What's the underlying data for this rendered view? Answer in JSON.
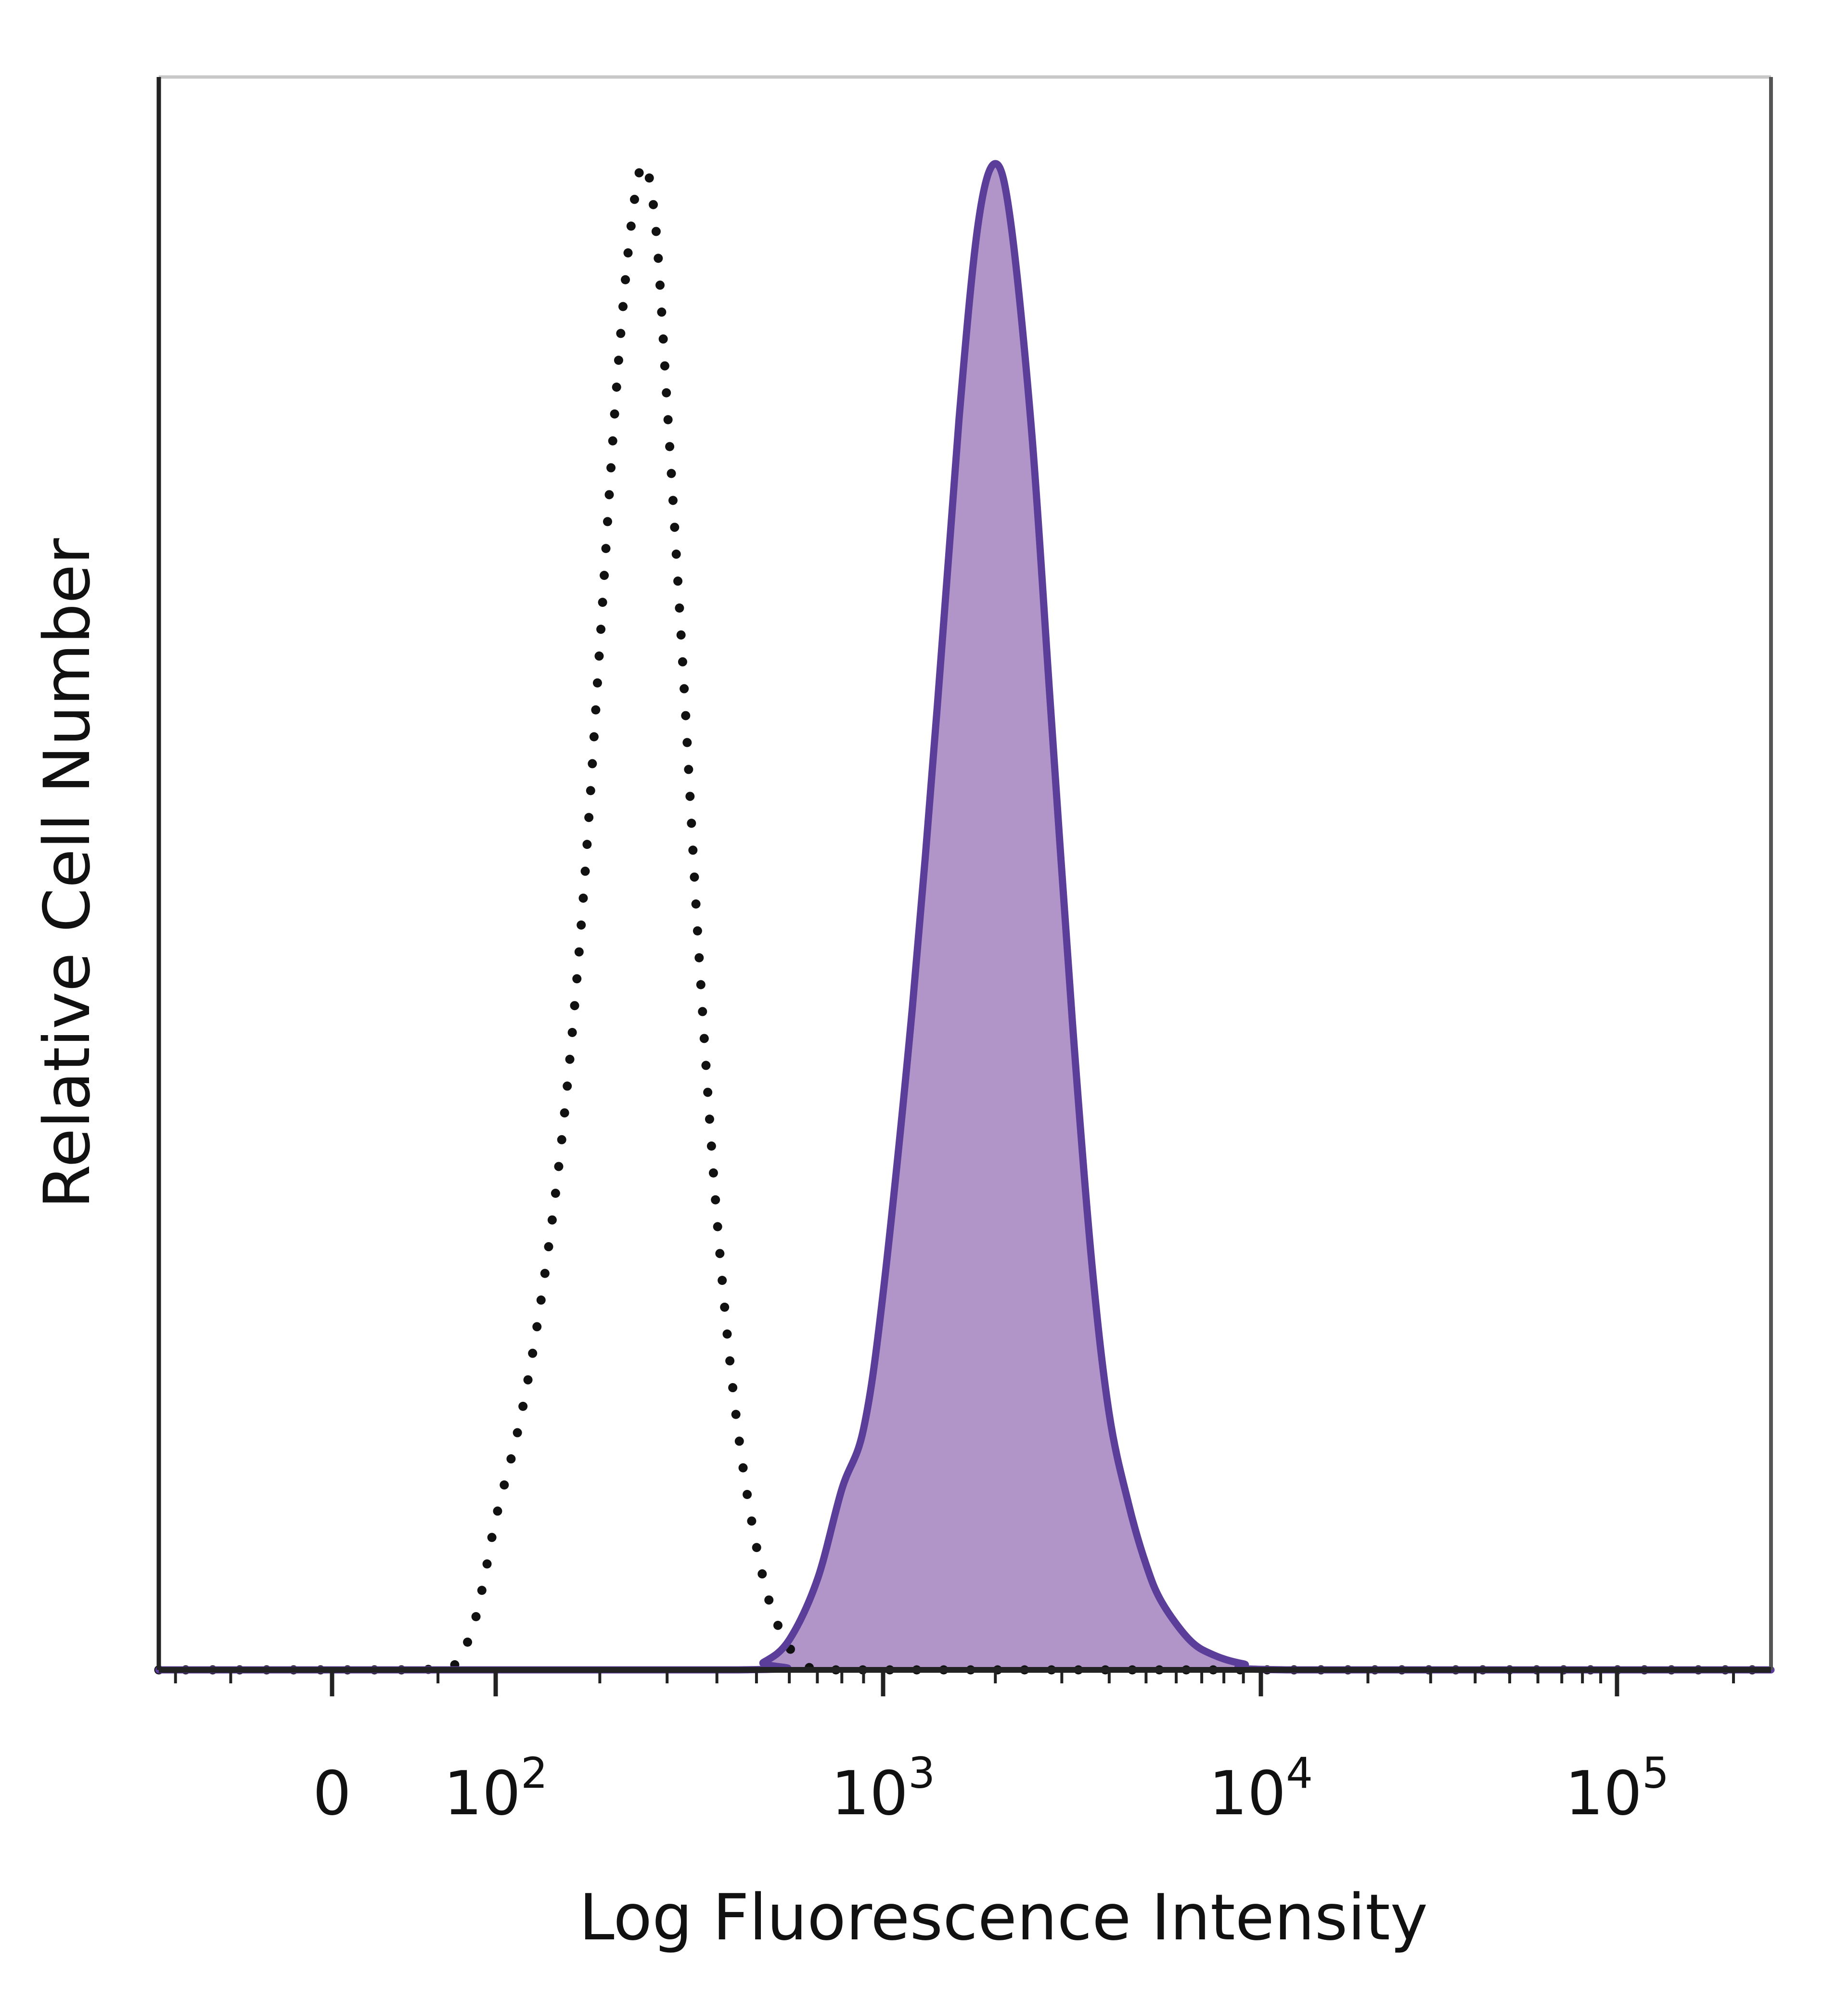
{
  "chart_data": {
    "type": "area",
    "xlabel": "Log Fluorescence Intensity",
    "ylabel": "Relative Cell Number",
    "x_scale": "biexponential",
    "x_tick_labels": [
      {
        "value": 0,
        "base": "0",
        "exp": ""
      },
      {
        "value": 100,
        "base": "10",
        "exp": "2"
      },
      {
        "value": 1000,
        "base": "10",
        "exp": "3"
      },
      {
        "value": 10000,
        "base": "10",
        "exp": "4"
      },
      {
        "value": 100000,
        "base": "10",
        "exp": "5"
      }
    ],
    "xlim": [
      -120,
      250000
    ],
    "ylim": [
      0,
      100
    ],
    "grid": false,
    "legend": "none",
    "series": [
      {
        "style": "dotted",
        "fill": false,
        "color": "#111111",
        "x": [
          -120,
          40,
          70,
          85,
          100,
          120,
          140,
          160,
          180,
          200,
          220,
          240,
          260,
          280,
          300,
          330,
          360,
          400,
          450,
          520,
          600,
          700,
          1000,
          10000,
          250000
        ],
        "y": [
          0,
          0,
          1.5,
          5,
          10,
          17,
          26,
          37,
          51,
          68,
          84,
          95,
          100,
          96,
          84,
          66,
          48,
          30,
          16,
          6,
          1.5,
          0,
          0,
          0,
          0
        ]
      },
      {
        "style": "solid",
        "fill": true,
        "color": "#5b3d9a",
        "fill_color": "#b295c8",
        "x": [
          -120,
          450,
          520,
          600,
          700,
          800,
          900,
          1000,
          1200,
          1400,
          1600,
          1800,
          2000,
          2200,
          2500,
          2800,
          3200,
          3600,
          4000,
          4500,
          5000,
          5500,
          6500,
          7500,
          9000,
          12000,
          250000
        ],
        "y": [
          0,
          0,
          0.5,
          2,
          6,
          12,
          16,
          25,
          44,
          64,
          83,
          96,
          100,
          96,
          82,
          64,
          43,
          27,
          17,
          11,
          7,
          4.5,
          2,
          1,
          0.4,
          0,
          0
        ]
      }
    ]
  }
}
